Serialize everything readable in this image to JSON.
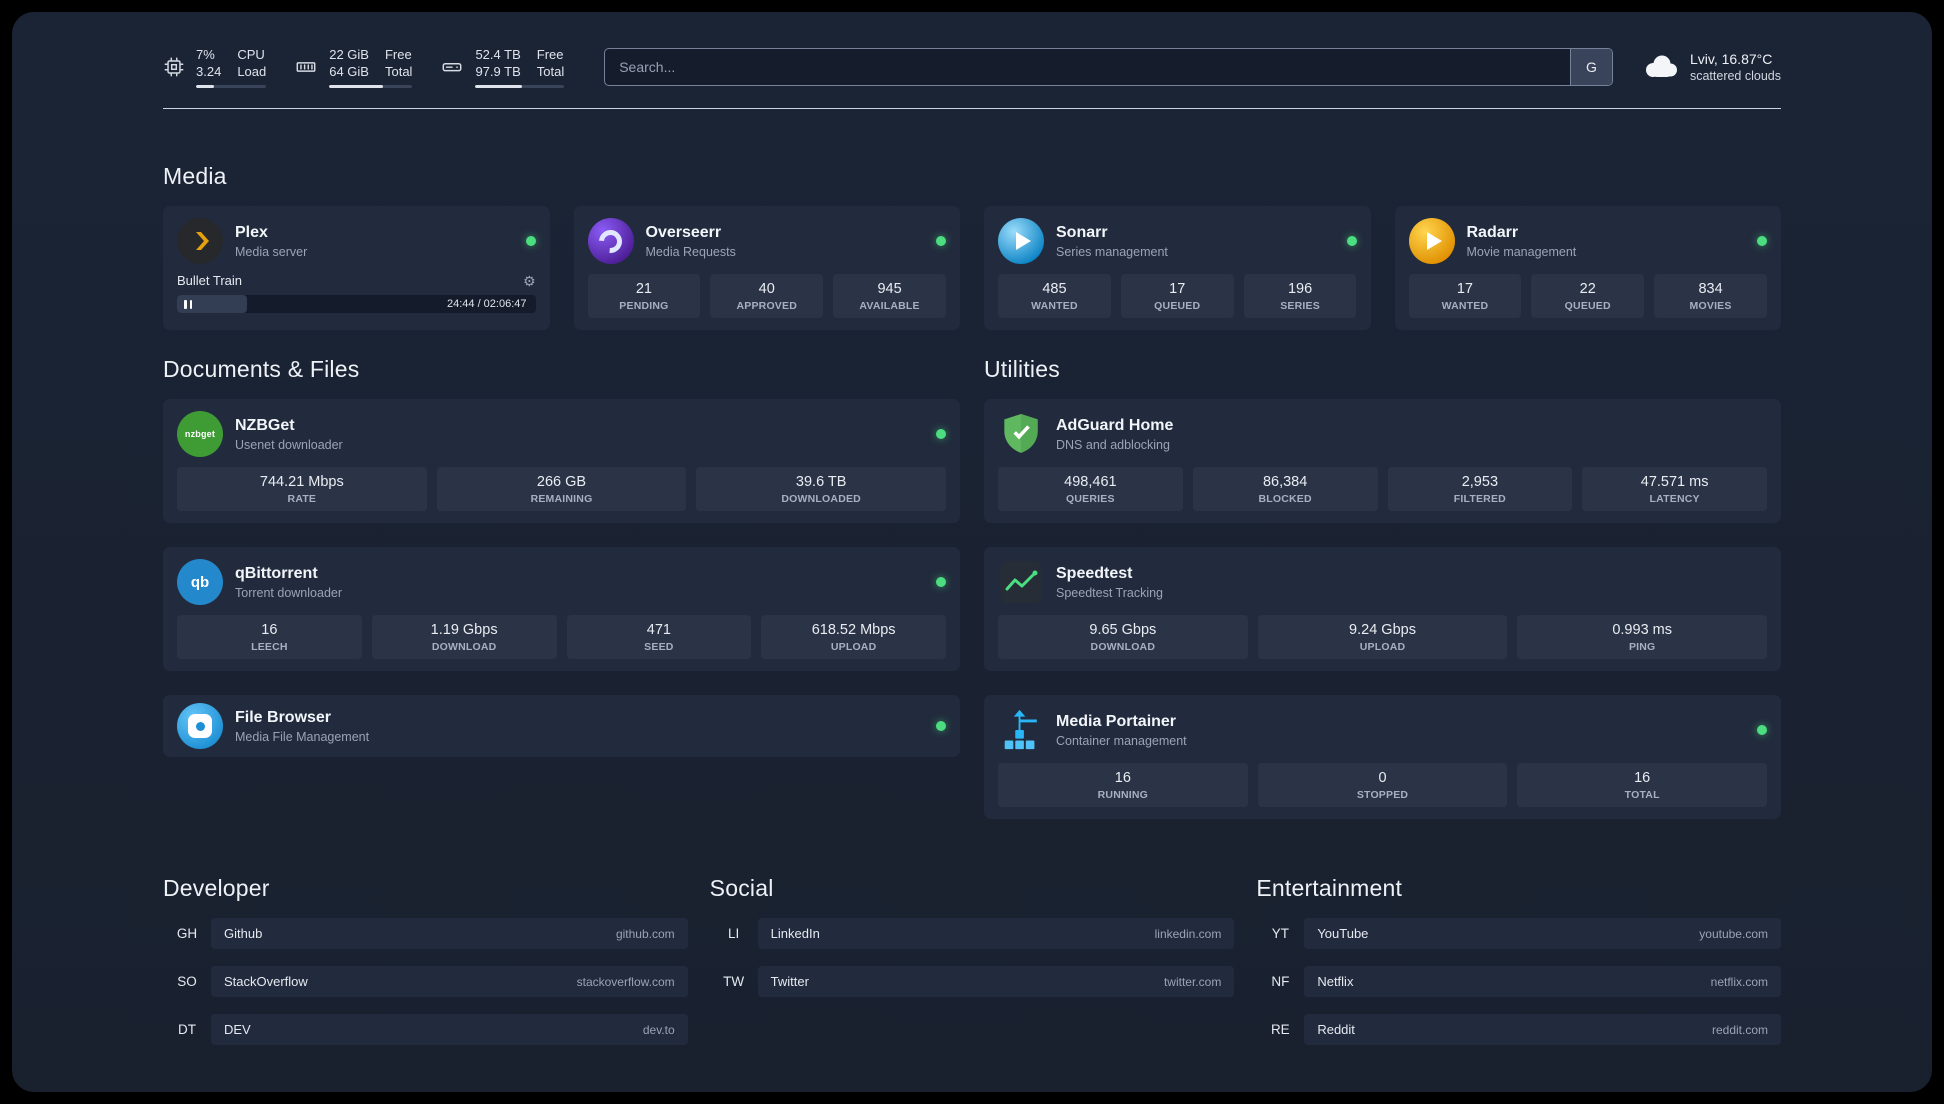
{
  "topbar": {
    "stats": [
      {
        "l1": "7%",
        "l2": "3.24",
        "r1": "CPU",
        "r2": "Load",
        "progress": 25
      },
      {
        "l1": "22 GiB",
        "l2": "64 GiB",
        "r1": "Free",
        "r2": "Total",
        "progress": 65
      },
      {
        "l1": "52.4 TB",
        "l2": "97.9 TB",
        "r1": "Free",
        "r2": "Total",
        "progress": 53
      }
    ],
    "search_placeholder": "Search...",
    "search_provider": "G",
    "weather_location": "Lviv, 16.87°C",
    "weather_condition": "scattered clouds"
  },
  "sections": {
    "media": {
      "title": "Media"
    },
    "documents": {
      "title": "Documents & Files"
    },
    "utilities": {
      "title": "Utilities"
    },
    "developer": {
      "title": "Developer"
    },
    "social": {
      "title": "Social"
    },
    "entertainment": {
      "title": "Entertainment"
    }
  },
  "services": {
    "plex": {
      "name": "Plex",
      "subtitle": "Media server",
      "track": "Bullet Train",
      "time": "24:44 / 02:06:47",
      "progress_pct": 19.5
    },
    "overseerr": {
      "name": "Overseerr",
      "subtitle": "Media Requests",
      "stats": [
        {
          "value": "21",
          "label": "PENDING"
        },
        {
          "value": "40",
          "label": "APPROVED"
        },
        {
          "value": "945",
          "label": "AVAILABLE"
        }
      ]
    },
    "sonarr": {
      "name": "Sonarr",
      "subtitle": "Series management",
      "stats": [
        {
          "value": "485",
          "label": "WANTED"
        },
        {
          "value": "17",
          "label": "QUEUED"
        },
        {
          "value": "196",
          "label": "SERIES"
        }
      ]
    },
    "radarr": {
      "name": "Radarr",
      "subtitle": "Movie management",
      "stats": [
        {
          "value": "17",
          "label": "WANTED"
        },
        {
          "value": "22",
          "label": "QUEUED"
        },
        {
          "value": "834",
          "label": "MOVIES"
        }
      ]
    },
    "nzbget": {
      "name": "NZBGet",
      "subtitle": "Usenet downloader",
      "icon_text": "nzbget",
      "stats": [
        {
          "value": "744.21 Mbps",
          "label": "RATE"
        },
        {
          "value": "266 GB",
          "label": "REMAINING"
        },
        {
          "value": "39.6 TB",
          "label": "DOWNLOADED"
        }
      ]
    },
    "qbittorrent": {
      "name": "qBittorrent",
      "subtitle": "Torrent downloader",
      "icon_text": "qb",
      "stats": [
        {
          "value": "16",
          "label": "LEECH"
        },
        {
          "value": "1.19 Gbps",
          "label": "DOWNLOAD"
        },
        {
          "value": "471",
          "label": "SEED"
        },
        {
          "value": "618.52 Mbps",
          "label": "UPLOAD"
        }
      ]
    },
    "filebrowser": {
      "name": "File Browser",
      "subtitle": "Media File Management"
    },
    "adguard": {
      "name": "AdGuard Home",
      "subtitle": "DNS and adblocking",
      "stats": [
        {
          "value": "498,461",
          "label": "QUERIES"
        },
        {
          "value": "86,384",
          "label": "BLOCKED"
        },
        {
          "value": "2,953",
          "label": "FILTERED"
        },
        {
          "value": "47.571 ms",
          "label": "LATENCY"
        }
      ]
    },
    "speedtest": {
      "name": "Speedtest",
      "subtitle": "Speedtest Tracking",
      "stats": [
        {
          "value": "9.65 Gbps",
          "label": "DOWNLOAD"
        },
        {
          "value": "9.24 Gbps",
          "label": "UPLOAD"
        },
        {
          "value": "0.993 ms",
          "label": "PING"
        }
      ]
    },
    "portainer": {
      "name": "Media Portainer",
      "subtitle": "Container management",
      "stats": [
        {
          "value": "16",
          "label": "RUNNING"
        },
        {
          "value": "0",
          "label": "STOPPED"
        },
        {
          "value": "16",
          "label": "TOTAL"
        }
      ]
    }
  },
  "bookmarks": {
    "developer": [
      {
        "abbr": "GH",
        "name": "Github",
        "domain": "github.com"
      },
      {
        "abbr": "SO",
        "name": "StackOverflow",
        "domain": "stackoverflow.com"
      },
      {
        "abbr": "DT",
        "name": "DEV",
        "domain": "dev.to"
      }
    ],
    "social": [
      {
        "abbr": "LI",
        "name": "LinkedIn",
        "domain": "linkedin.com"
      },
      {
        "abbr": "TW",
        "name": "Twitter",
        "domain": "twitter.com"
      }
    ],
    "entertainment": [
      {
        "abbr": "YT",
        "name": "YouTube",
        "domain": "youtube.com"
      },
      {
        "abbr": "NF",
        "name": "Netflix",
        "domain": "netflix.com"
      },
      {
        "abbr": "RE",
        "name": "Reddit",
        "domain": "reddit.com"
      }
    ]
  },
  "colors": {
    "accent_green": "#4ade80"
  }
}
